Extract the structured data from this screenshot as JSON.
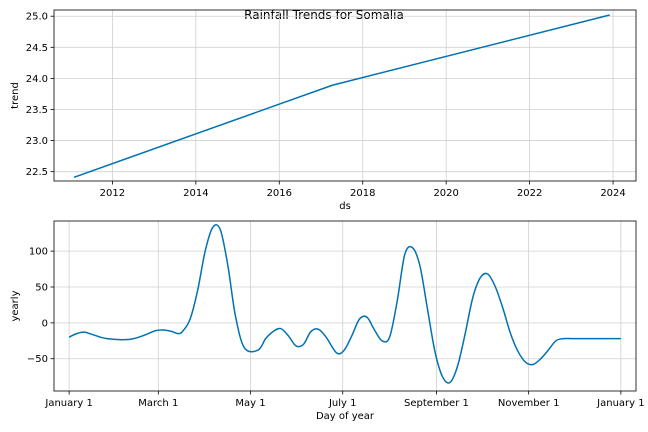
{
  "chart_data": [
    {
      "type": "line",
      "title": "Rainfall Trends for Somalia",
      "xlabel": "ds",
      "ylabel": "trend",
      "xlim": [
        2010.6,
        2024.55
      ],
      "ylim": [
        22.35,
        25.1
      ],
      "x_ticks": [
        2012,
        2014,
        2016,
        2018,
        2020,
        2022,
        2024
      ],
      "x_tick_labels": [
        "2012",
        "2014",
        "2016",
        "2018",
        "2020",
        "2022",
        "2024"
      ],
      "y_ticks": [
        22.5,
        23.0,
        23.5,
        24.0,
        24.5,
        25.0
      ],
      "y_tick_labels": [
        "22.5",
        "23.0",
        "23.5",
        "24.0",
        "24.5",
        "25.0"
      ],
      "grid": true,
      "color": "#0072B2",
      "series": [
        {
          "x": [
            2011.08,
            2017.27,
            2023.92
          ],
          "y": [
            22.41,
            23.89,
            25.02
          ]
        }
      ]
    },
    {
      "type": "line",
      "xlabel": "Day of year",
      "ylabel": "yearly",
      "xlim": [
        -10,
        375
      ],
      "ylim": [
        -95,
        142
      ],
      "x_ticks": [
        0,
        59,
        120,
        181,
        243,
        304,
        365
      ],
      "x_tick_labels": [
        "January 1",
        "March 1",
        "May 1",
        "July 1",
        "September 1",
        "November 1",
        "January 1"
      ],
      "y_ticks": [
        -50,
        0,
        50,
        100
      ],
      "y_tick_labels": [
        "−50",
        "0",
        "50",
        "100"
      ],
      "grid": true,
      "color": "#0072B2",
      "series": [
        {
          "x": [
            0,
            5,
            10,
            15,
            25,
            40,
            50,
            57,
            62,
            68,
            72,
            75,
            80,
            85,
            90,
            95,
            100,
            105,
            110,
            116,
            125,
            130,
            135,
            140,
            145,
            150,
            155,
            160,
            165,
            170,
            177,
            182,
            187,
            192,
            197,
            202,
            207,
            212,
            217,
            222,
            227,
            232,
            237,
            242,
            247,
            252,
            257,
            262,
            267,
            272,
            277,
            282,
            287,
            292,
            297,
            302,
            307,
            312,
            317,
            322,
            327,
            332,
            337,
            342,
            347,
            352,
            358,
            365
          ],
          "y": [
            -20,
            -15,
            -13,
            -16,
            -22,
            -23,
            -17,
            -11,
            -10,
            -12,
            -15,
            -12,
            5,
            45,
            100,
            133,
            130,
            80,
            10,
            -35,
            -38,
            -22,
            -12,
            -8,
            -18,
            -32,
            -30,
            -12,
            -9,
            -20,
            -42,
            -38,
            -18,
            5,
            8,
            -10,
            -25,
            -20,
            30,
            95,
            105,
            80,
            20,
            -40,
            -75,
            -83,
            -60,
            -15,
            35,
            63,
            68,
            50,
            20,
            -15,
            -40,
            -55,
            -58,
            -50,
            -38,
            -25,
            -22,
            -22,
            -22,
            -22,
            -22,
            -22,
            -22,
            -22
          ]
        }
      ]
    }
  ]
}
